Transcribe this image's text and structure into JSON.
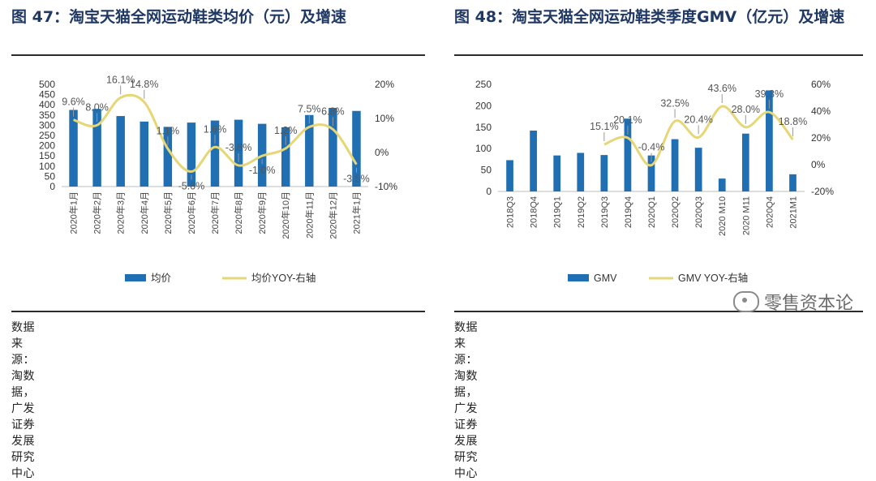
{
  "charts": [
    {
      "title": "图 47：淘宝天猫全网运动鞋类均价（元）及增速",
      "source": "数据来源：淘数据，广发证券发展研究中心"
    },
    {
      "title": "图 48：淘宝天猫全网运动鞋类季度GMV（亿元）及增速",
      "source": "数据来源：淘数据，广发证券发展研究中心"
    }
  ],
  "watermark": "零售资本论",
  "colors": {
    "bar": "#1f6fb2",
    "line": "#e6d676",
    "label": "#555555"
  },
  "chart_data": [
    {
      "type": "bar",
      "categories": [
        "2020年1月",
        "2020年2月",
        "2020年3月",
        "2020年4月",
        "2020年5月",
        "2020年6月",
        "2020年7月",
        "2020年8月",
        "2020年9月",
        "2020年10月",
        "2020年11月",
        "2020年12月",
        "2021年1月"
      ],
      "series": [
        {
          "name": "均价",
          "type": "bar",
          "axis": "left",
          "values": [
            375,
            380,
            345,
            318,
            292,
            313,
            323,
            327,
            307,
            290,
            350,
            385,
            370
          ]
        },
        {
          "name": "均价YOY-右轴",
          "type": "line",
          "axis": "right",
          "unit": "%",
          "values": [
            9.6,
            8.0,
            16.1,
            14.8,
            1.1,
            -5.6,
            1.6,
            -3.8,
            -1.0,
            1.2,
            7.5,
            6.8,
            -3.5
          ],
          "labels": [
            "9.6%",
            "8.0%",
            "16.1%",
            "14.8%",
            "1.1%",
            "-5.6%",
            "1.6%",
            "-3.8%",
            "-1.0%",
            "1.2%",
            "7.5%",
            "6.8%",
            "-3.5%"
          ]
        }
      ],
      "ylim": [
        0,
        500
      ],
      "yticks": [
        "0",
        "50",
        "100",
        "150",
        "200",
        "250",
        "300",
        "350",
        "400",
        "450",
        "500"
      ],
      "y2lim": [
        -10,
        20
      ],
      "y2ticks": [
        "-10%",
        "0%",
        "10%",
        "20%"
      ],
      "legend": [
        "均价",
        "均价YOY-右轴"
      ]
    },
    {
      "type": "bar",
      "categories": [
        "2018Q3",
        "2018Q4",
        "2019Q1",
        "2019Q2",
        "2019Q3",
        "2019Q4",
        "2020Q1",
        "2020Q2",
        "2020Q3",
        "2020 M10",
        "2020 M11",
        "2020Q4",
        "2021M1"
      ],
      "series": [
        {
          "name": "GMV",
          "type": "bar",
          "axis": "left",
          "values": [
            73,
            142,
            84,
            90,
            85,
            170,
            84,
            122,
            102,
            30,
            135,
            236,
            40
          ]
        },
        {
          "name": "GMV YOY-右轴",
          "type": "line",
          "axis": "right",
          "unit": "%",
          "values": [
            null,
            null,
            null,
            null,
            15.1,
            20.1,
            -0.4,
            32.5,
            20.4,
            43.6,
            28.0,
            39.3,
            18.8
          ],
          "labels": [
            "",
            "",
            "",
            "",
            "15.1%",
            "20.1%",
            "-0.4%",
            "32.5%",
            "20.4%",
            "43.6%",
            "28.0%",
            "39.3%",
            "18.8%"
          ]
        }
      ],
      "ylim": [
        0,
        250
      ],
      "yticks": [
        "0",
        "50",
        "100",
        "150",
        "200",
        "250"
      ],
      "y2lim": [
        -20,
        60
      ],
      "y2ticks": [
        "-20%",
        "0%",
        "20%",
        "40%",
        "60%"
      ],
      "legend": [
        "GMV",
        "GMV YOY-右轴"
      ]
    }
  ]
}
